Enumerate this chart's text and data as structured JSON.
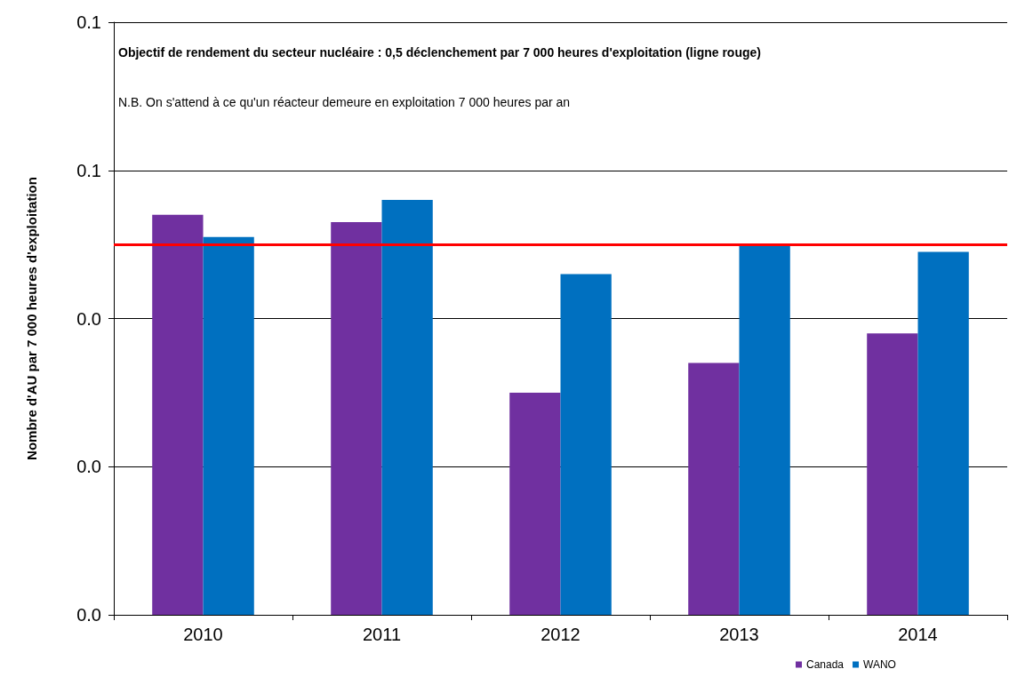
{
  "chart_data": {
    "type": "bar",
    "ylabel": "Nombre d'AU par 7 000 heures d'exploitation",
    "categories": [
      "2010",
      "2011",
      "2012",
      "2013",
      "2014"
    ],
    "series": [
      {
        "name": "Canada",
        "color": "#7030a0",
        "values": [
          0.054,
          0.053,
          0.03,
          0.034,
          0.038
        ]
      },
      {
        "name": "WANO",
        "color": "#0070c0",
        "values": [
          0.051,
          0.056,
          0.046,
          0.05,
          0.049
        ]
      }
    ],
    "ylim": [
      0,
      0.08
    ],
    "yticks": [
      {
        "value": 0,
        "label": "0.0"
      },
      {
        "value": 0.02,
        "label": "0.0"
      },
      {
        "value": 0.04,
        "label": "0.0"
      },
      {
        "value": 0.06,
        "label": "0.1"
      },
      {
        "value": 0.08,
        "label": "0.1"
      }
    ],
    "ref_lines": [
      {
        "axis": "y",
        "value": 0.05,
        "color": "#ff0000"
      }
    ],
    "annotations": [
      "Objectif de rendement du secteur nucléaire : 0,5 déclenchement par 7 000 heures d'exploitation (ligne rouge)",
      "N.B. On s'attend à ce qu'un réacteur demeure en exploitation 7 000 heures par an"
    ],
    "grid": "y",
    "legend": "bottom right"
  }
}
